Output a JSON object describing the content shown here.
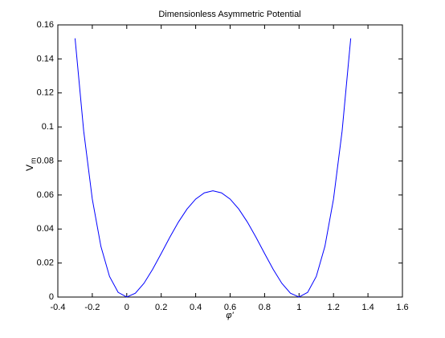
{
  "chart_data": {
    "type": "line",
    "title": "Dimensionless Asymmetric Potential",
    "xlabel": "φ'",
    "ylabel": "V",
    "ylabel_subscript": "m",
    "x": [
      -0.3,
      -0.25,
      -0.2,
      -0.15,
      -0.1,
      -0.05,
      0,
      0.05,
      0.1,
      0.15,
      0.2,
      0.25,
      0.3,
      0.35,
      0.4,
      0.45,
      0.5,
      0.55,
      0.6,
      0.65,
      0.7,
      0.75,
      0.8,
      0.85,
      0.9,
      0.95,
      1,
      1.05,
      1.1,
      1.15,
      1.2,
      1.25,
      1.3
    ],
    "series": [
      {
        "color": "#0000ff",
        "values": [
          0.1521,
          0.09766,
          0.0576,
          0.02976,
          0.0121,
          0.002756,
          0,
          0.002256,
          0.0081,
          0.01626,
          0.0256,
          0.03516,
          0.0441,
          0.05176,
          0.0576,
          0.06126,
          0.0625,
          0.06126,
          0.0576,
          0.05176,
          0.0441,
          0.03516,
          0.0256,
          0.01626,
          0.0081,
          0.002256,
          0,
          0.002756,
          0.0121,
          0.02976,
          0.0576,
          0.09766,
          0.1521
        ]
      }
    ],
    "xlim": [
      -0.4,
      1.6
    ],
    "xticks": [
      -0.4,
      -0.2,
      0,
      0.2,
      0.4,
      0.6,
      0.8,
      1,
      1.2,
      1.4,
      1.6
    ],
    "ylim": [
      0,
      0.16
    ],
    "yticks": [
      0,
      0.02,
      0.04,
      0.06,
      0.08,
      0.1,
      0.12,
      0.14,
      0.16
    ],
    "grid": false
  }
}
